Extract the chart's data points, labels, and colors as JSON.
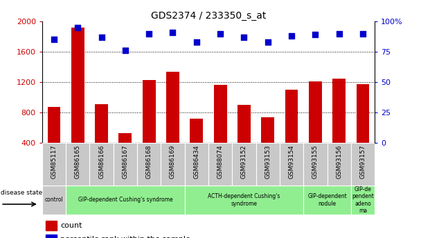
{
  "title": "GDS2374 / 233350_s_at",
  "samples": [
    "GSM85117",
    "GSM86165",
    "GSM86166",
    "GSM86167",
    "GSM86168",
    "GSM86169",
    "GSM86434",
    "GSM88074",
    "GSM93152",
    "GSM93153",
    "GSM93154",
    "GSM93155",
    "GSM93156",
    "GSM93157"
  ],
  "counts": [
    870,
    1920,
    910,
    530,
    1230,
    1340,
    720,
    1160,
    900,
    740,
    1100,
    1210,
    1250,
    1170
  ],
  "percentiles": [
    85,
    95,
    87,
    76,
    90,
    91,
    83,
    90,
    87,
    83,
    88,
    89,
    90,
    90
  ],
  "ylim_left": [
    400,
    2000
  ],
  "ylim_right": [
    0,
    100
  ],
  "yticks_left": [
    400,
    800,
    1200,
    1600,
    2000
  ],
  "yticks_right": [
    0,
    25,
    50,
    75,
    100
  ],
  "bar_color": "#cc0000",
  "dot_color": "#0000cc",
  "grid_color": "#000000",
  "disease_groups": [
    {
      "label": "control",
      "start": 0,
      "end": 0,
      "color": "#c8c8c8"
    },
    {
      "label": "GIP-dependent Cushing's syndrome",
      "start": 1,
      "end": 5,
      "color": "#90ee90"
    },
    {
      "label": "ACTH-dependent Cushing's\nsyndrome",
      "start": 6,
      "end": 10,
      "color": "#90ee90"
    },
    {
      "label": "GIP-dependent\nnodule",
      "start": 11,
      "end": 12,
      "color": "#90ee90"
    },
    {
      "label": "GIP-de\npendent\nadeno\nma",
      "start": 13,
      "end": 13,
      "color": "#90ee90"
    }
  ],
  "bar_width": 0.55,
  "title_fontsize": 10,
  "tick_label_color_left": "#cc0000",
  "tick_label_color_right": "#0000cc",
  "xtick_bg_color": "#c8c8c8"
}
